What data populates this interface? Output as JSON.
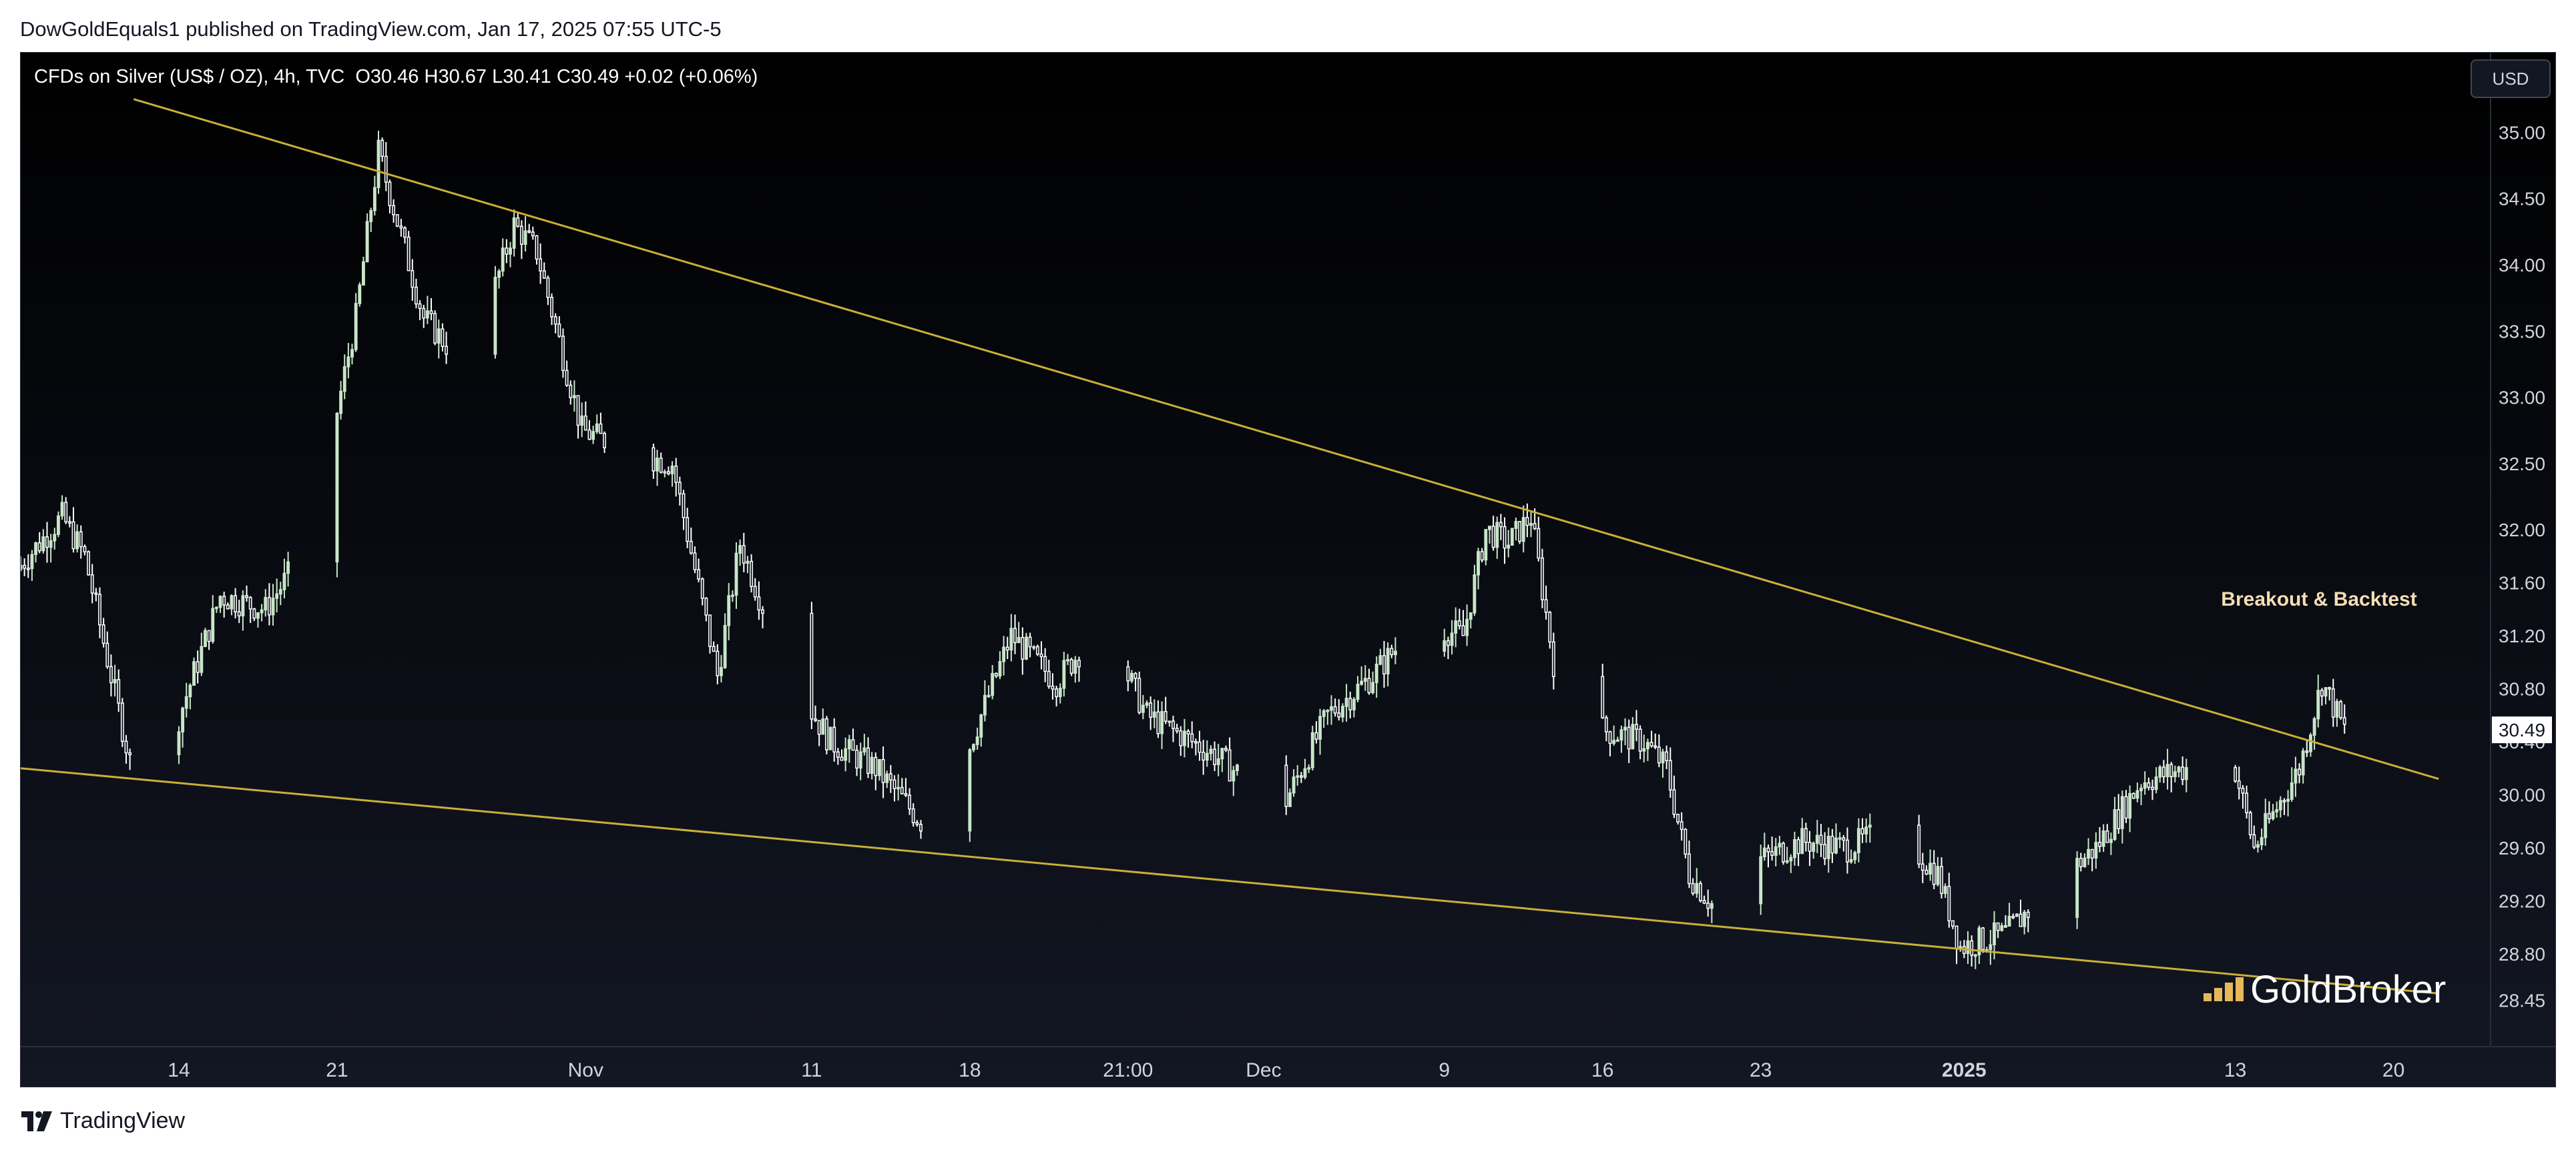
{
  "header": {
    "publisher": "DowGoldEquals1 published on TradingView.com, Jan 17, 2025 07:55 UTC-5"
  },
  "chart_header": {
    "symbol": "CFDs on Silver (US$ / OZ), 4h, TVC",
    "ohlc": "O30.46  H30.67  L30.41  C30.49  +0.02 (+0.06%)",
    "currency_button": "USD"
  },
  "footer": {
    "brand": "TradingView"
  },
  "colors": {
    "up_candle": "#c8e6c9",
    "down_candle": "#ffffff",
    "trendline": "#c9b037",
    "annotation": "#f5deb3",
    "price_label_bg": "#ffffff"
  },
  "chart_data": {
    "type": "candlestick",
    "title": "",
    "timeframe": "4h",
    "y_axis": {
      "side": "right",
      "ticks": [
        "35.00",
        "34.50",
        "34.00",
        "33.50",
        "33.00",
        "32.50",
        "32.00",
        "31.60",
        "31.20",
        "30.80",
        "30.40",
        "30.00",
        "29.60",
        "29.20",
        "28.80",
        "28.45"
      ],
      "range": [
        28.2,
        35.5
      ]
    },
    "x_axis": {
      "ticks": [
        "14",
        "21",
        "Nov",
        "11",
        "18",
        "21:00",
        "Dec",
        "9",
        "16",
        "23",
        "2025",
        "13",
        "20"
      ],
      "range": [
        "2024-10-07",
        "2025-01-24"
      ]
    },
    "last_price_label": "30.49",
    "series": [
      {
        "trend": "price",
        "waypoints": [
          {
            "date": "2024-10-07",
            "price": 31.7
          },
          {
            "date": "2024-10-09",
            "price": 32.1
          },
          {
            "date": "2024-10-10",
            "price": 31.8
          },
          {
            "date": "2024-10-12",
            "price": 30.25
          },
          {
            "date": "2024-10-14",
            "price": 30.5
          },
          {
            "date": "2024-10-16",
            "price": 31.5
          },
          {
            "date": "2024-10-18",
            "price": 31.4
          },
          {
            "date": "2024-10-20",
            "price": 31.9
          },
          {
            "date": "2024-10-22",
            "price": 33.6
          },
          {
            "date": "2024-10-23",
            "price": 34.85
          },
          {
            "date": "2024-10-25",
            "price": 33.6
          },
          {
            "date": "2024-10-27",
            "price": 33.2
          },
          {
            "date": "2024-10-29",
            "price": 34.3
          },
          {
            "date": "2024-10-30",
            "price": 34.1
          },
          {
            "date": "2024-11-01",
            "price": 32.75
          },
          {
            "date": "2024-11-03",
            "price": 32.6
          },
          {
            "date": "2024-11-05",
            "price": 32.5
          },
          {
            "date": "2024-11-07",
            "price": 30.9
          },
          {
            "date": "2024-11-08",
            "price": 31.9
          },
          {
            "date": "2024-11-10",
            "price": 30.95
          },
          {
            "date": "2024-11-12",
            "price": 30.4
          },
          {
            "date": "2024-11-14",
            "price": 30.2
          },
          {
            "date": "2024-11-16",
            "price": 29.8
          },
          {
            "date": "2024-11-18",
            "price": 30.3
          },
          {
            "date": "2024-11-20",
            "price": 31.2
          },
          {
            "date": "2024-11-22",
            "price": 30.85
          },
          {
            "date": "2024-11-24",
            "price": 31.3
          },
          {
            "date": "2024-11-26",
            "price": 30.6
          },
          {
            "date": "2024-11-29",
            "price": 30.3
          },
          {
            "date": "2024-12-02",
            "price": 29.9
          },
          {
            "date": "2024-12-04",
            "price": 30.6
          },
          {
            "date": "2024-12-06",
            "price": 30.9
          },
          {
            "date": "2024-12-08",
            "price": 31.3
          },
          {
            "date": "2024-12-10",
            "price": 31.2
          },
          {
            "date": "2024-12-11",
            "price": 32.0
          },
          {
            "date": "2024-12-12",
            "price": 31.9
          },
          {
            "date": "2024-12-13",
            "price": 32.1
          },
          {
            "date": "2024-12-14",
            "price": 31.0
          },
          {
            "date": "2024-12-16",
            "price": 30.5
          },
          {
            "date": "2024-12-18",
            "price": 30.4
          },
          {
            "date": "2024-12-19",
            "price": 30.2
          },
          {
            "date": "2024-12-20",
            "price": 29.4
          },
          {
            "date": "2024-12-22",
            "price": 28.95
          },
          {
            "date": "2024-12-23",
            "price": 29.5
          },
          {
            "date": "2024-12-25",
            "price": 29.65
          },
          {
            "date": "2024-12-27",
            "price": 29.6
          },
          {
            "date": "2024-12-29",
            "price": 29.75
          },
          {
            "date": "2024-12-31",
            "price": 29.4
          },
          {
            "date": "2025-01-01",
            "price": 28.85
          },
          {
            "date": "2025-01-03",
            "price": 28.95
          },
          {
            "date": "2025-01-05",
            "price": 29.3
          },
          {
            "date": "2025-01-07",
            "price": 29.6
          },
          {
            "date": "2025-01-09",
            "price": 30.1
          },
          {
            "date": "2025-01-11",
            "price": 30.2
          },
          {
            "date": "2025-01-13",
            "price": 30.3
          },
          {
            "date": "2025-01-14",
            "price": 29.6
          },
          {
            "date": "2025-01-16",
            "price": 30.2
          },
          {
            "date": "2025-01-17",
            "price": 30.85
          },
          {
            "date": "2025-01-18",
            "price": 30.49
          }
        ]
      }
    ],
    "trendlines": [
      {
        "name": "upper",
        "from": {
          "date": "2024-10-12",
          "price": 35.25
        },
        "to": {
          "date": "2025-01-22",
          "price": 30.12
        }
      },
      {
        "name": "lower",
        "from": {
          "date": "2024-10-07",
          "price": 30.2
        },
        "to": {
          "date": "2025-01-22",
          "price": 28.5
        }
      }
    ],
    "annotations": [
      {
        "text": "Breakout & Backtest",
        "date": "2025-01-17",
        "price": 31.25
      }
    ],
    "watermark": "GoldBroker",
    "grid": false
  }
}
